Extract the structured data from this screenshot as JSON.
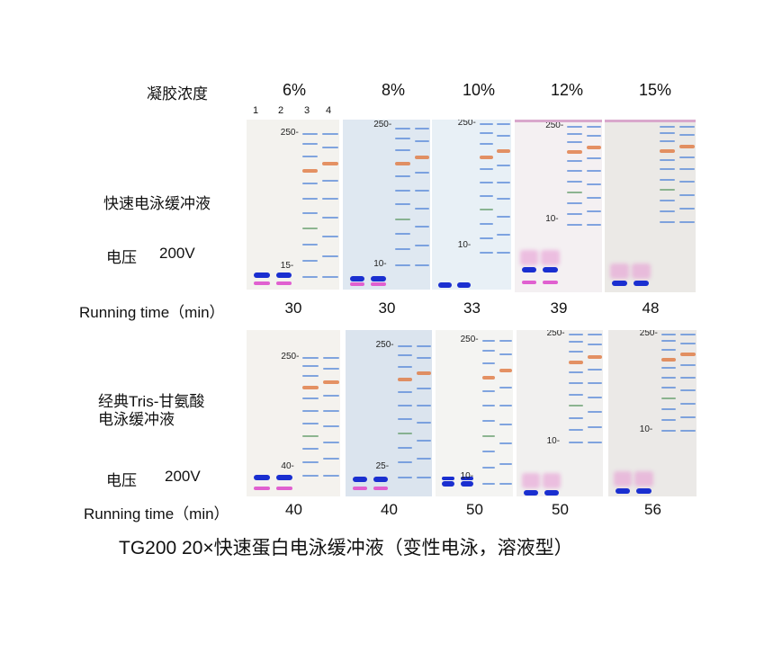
{
  "header": {
    "gel_concentration_label": "凝胶浓度",
    "concentrations": [
      "6%",
      "8%",
      "10%",
      "12%",
      "15%"
    ],
    "lane_numbers": [
      "1",
      "2",
      "3",
      "4"
    ]
  },
  "rows": [
    {
      "buffer_label": [
        "快速电泳缓冲液"
      ],
      "voltage_label": "电压",
      "voltage_value": "200V",
      "running_time_label": "Running time（min）",
      "times": [
        "30",
        "30",
        "33",
        "39",
        "48"
      ],
      "marker_labels": [
        [
          "250-",
          "15-"
        ],
        [
          "250-",
          "10-"
        ],
        [
          "250-",
          "10-"
        ],
        [
          "250-",
          "10-"
        ],
        []
      ]
    },
    {
      "buffer_label": [
        "经典Tris-甘氨酸",
        "电泳缓冲液"
      ],
      "voltage_label": "电压",
      "voltage_value": "200V",
      "running_time_label": "Running time（min）",
      "times": [
        "40",
        "40",
        "50",
        "50",
        "56"
      ],
      "marker_labels": [
        [
          "250-",
          "40-"
        ],
        [
          "250-",
          "25-"
        ],
        [
          "250-",
          "10-"
        ],
        [
          "250-",
          "10-"
        ],
        [
          "250-",
          "10-"
        ]
      ]
    }
  ],
  "caption": "TG200  20×快速蛋白电泳缓冲液（变性电泳，溶液型）",
  "colors": {
    "sample_blue": "#1a2fd0",
    "sample_pink": "#e060d0",
    "marker_blue": "#5a8ad8",
    "marker_orange": "#e07840",
    "marker_green": "#6aa070"
  }
}
